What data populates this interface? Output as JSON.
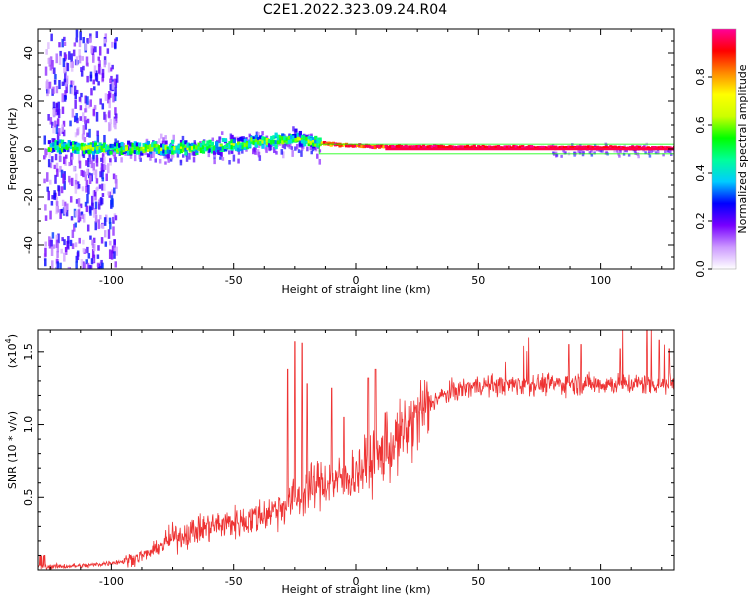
{
  "title": "C2E1.2022.323.09.24.R04",
  "charts": [
    {
      "type": "heatmap",
      "xlabel": "Height of straight line (km)",
      "ylabel": "Frequency (Hz)",
      "xlim": [
        -130,
        130
      ],
      "ylim": [
        -50,
        50
      ],
      "xticks": [
        "-100",
        "-50",
        "0",
        "50",
        "100"
      ],
      "yticks": [
        "-40",
        "-20",
        "0",
        "20",
        "40"
      ],
      "colorbar": {
        "label": "Normalized spectral amplitude",
        "range": [
          0,
          1
        ],
        "ticks": [
          "0.0",
          "0.2",
          "0.4",
          "0.6",
          "0.8"
        ],
        "colors": [
          "#ffffff",
          "#cc99ff",
          "#7700ff",
          "#0000ff",
          "#00ccff",
          "#00ff99",
          "#00ff00",
          "#ccff00",
          "#ffff00",
          "#ff8800",
          "#ff0000",
          "#ff0099"
        ]
      },
      "series_description_values": {
        "ridge_frequency_hz": [
          [
            -125,
            1
          ],
          [
            -100,
            0
          ],
          [
            -75,
            0
          ],
          [
            -55,
            1
          ],
          [
            -40,
            3
          ],
          [
            -25,
            4
          ],
          [
            -15,
            2
          ],
          [
            0,
            1
          ],
          [
            10,
            0.5
          ],
          [
            130,
            0
          ]
        ],
        "band_halfwidth_hz": 2
      }
    },
    {
      "type": "line",
      "xlabel": "Height of straight line (km)",
      "ylabel": "SNR (10 * v/v)",
      "y_multiplier": "(x10",
      "y_multiplier_exp": "4",
      "y_multiplier_close": ")",
      "xlim": [
        -130,
        130
      ],
      "ylim": [
        0,
        1.65
      ],
      "xticks": [
        "-100",
        "-50",
        "0",
        "50",
        "100"
      ],
      "yticks": [
        "0.5",
        "1.0",
        "1.5"
      ],
      "line_color": "#ee3333",
      "trend": [
        [
          -130,
          0.02
        ],
        [
          -110,
          0.03
        ],
        [
          -95,
          0.06
        ],
        [
          -85,
          0.11
        ],
        [
          -75,
          0.22
        ],
        [
          -60,
          0.3
        ],
        [
          -45,
          0.34
        ],
        [
          -35,
          0.4
        ],
        [
          -25,
          0.48
        ],
        [
          -15,
          0.6
        ],
        [
          -5,
          0.62
        ],
        [
          5,
          0.72
        ],
        [
          15,
          0.85
        ],
        [
          25,
          1.05
        ],
        [
          32,
          1.17
        ],
        [
          40,
          1.23
        ],
        [
          50,
          1.27
        ],
        [
          60,
          1.27
        ],
        [
          70,
          1.28
        ],
        [
          85,
          1.28
        ],
        [
          100,
          1.28
        ],
        [
          115,
          1.28
        ],
        [
          130,
          1.28
        ]
      ],
      "spikes": [
        [
          -25,
          1.57
        ],
        [
          -22,
          1.56
        ],
        [
          -28,
          1.38
        ],
        [
          -20,
          1.28
        ],
        [
          -10,
          1.25
        ],
        [
          -5,
          1.05
        ],
        [
          5,
          1.32
        ],
        [
          8,
          1.38
        ],
        [
          12,
          1.08
        ],
        [
          87,
          1.55
        ],
        [
          92,
          1.55
        ],
        [
          108,
          1.52
        ],
        [
          119,
          1.65
        ],
        [
          124,
          1.58
        ],
        [
          128,
          1.52
        ]
      ]
    }
  ]
}
